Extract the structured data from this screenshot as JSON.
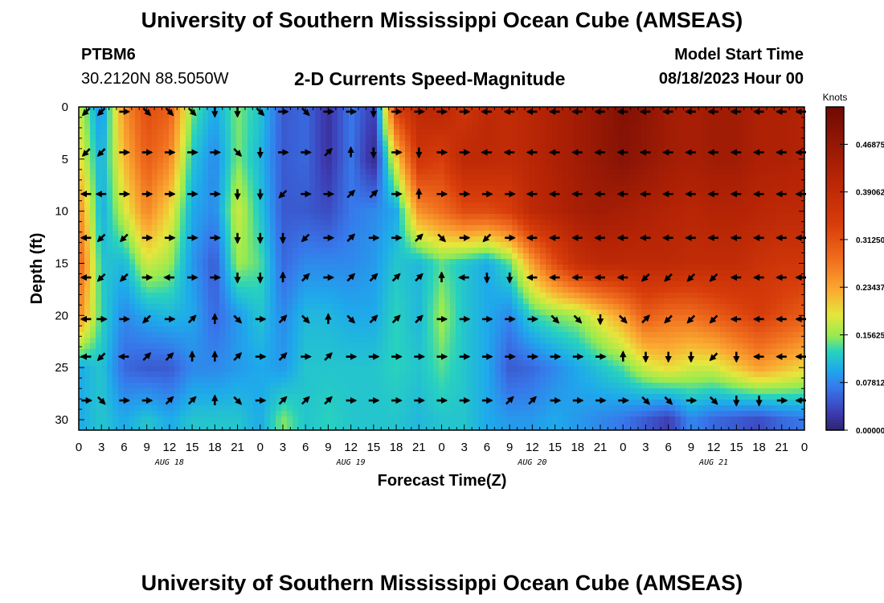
{
  "header": {
    "title": "University of Southern Mississippi Ocean Cube (AMSEAS)",
    "station_id": "PTBM6",
    "coords": "30.2120N  88.5050W",
    "subtitle": "2-D Currents Speed-Magnitude",
    "model_start_label": "Model Start Time",
    "model_start_value": "08/18/2023 Hour 00"
  },
  "footer": {
    "title": "University of Southern Mississippi Ocean Cube (AMSEAS)"
  },
  "chart_data": {
    "type": "heatmap",
    "title": "2-D Currents Speed-Magnitude",
    "xlabel": "Forecast Time(Z)",
    "ylabel": "Depth (ft)",
    "x_hours_range": [
      0,
      96
    ],
    "y_range": [
      0,
      31
    ],
    "x_ticks": [
      "0",
      "3",
      "6",
      "9",
      "12",
      "15",
      "18",
      "21",
      "0",
      "3",
      "6",
      "9",
      "12",
      "15",
      "18",
      "21",
      "0",
      "3",
      "6",
      "9",
      "12",
      "15",
      "18",
      "21",
      "0",
      "3",
      "6",
      "9",
      "12",
      "15",
      "18",
      "21",
      "0"
    ],
    "day_labels": [
      "AUG 18",
      "AUG 19",
      "AUG 20",
      "AUG 21"
    ],
    "y_ticks": [
      "0",
      "5",
      "10",
      "15",
      "20",
      "25",
      "30"
    ],
    "colorbar": {
      "unit": "Knots",
      "tick_values": [
        0.0,
        0.078125,
        0.15625,
        0.234375,
        0.3125,
        0.390625,
        0.46875
      ],
      "tick_labels": [
        "0.00000",
        "0.07812",
        "0.15625",
        "0.23437",
        "0.31250",
        "0.39062",
        "0.46875"
      ],
      "range": [
        0,
        0.53
      ]
    },
    "arrow_depths_ft": [
      0.3,
      4.2,
      8.2,
      12.4,
      16.2,
      20.2,
      23.8,
      28.0
    ],
    "speed_grid_times_h": [
      0,
      3,
      6,
      9,
      12,
      15,
      18,
      21,
      24,
      27,
      30,
      33,
      36,
      39,
      42,
      45,
      48,
      51,
      54,
      57,
      60,
      63,
      66,
      69,
      72,
      75,
      78,
      81,
      84,
      87,
      90,
      93,
      96
    ],
    "speed_grid_depths_ft": [
      0,
      5,
      10,
      15,
      20,
      25,
      30
    ],
    "speed_knots": [
      [
        0.18,
        0.08,
        0.25,
        0.32,
        0.3,
        0.15,
        0.1,
        0.15,
        0.12,
        0.05,
        0.06,
        0.02,
        0.07,
        0.03,
        0.34,
        0.4,
        0.41,
        0.36,
        0.4,
        0.39,
        0.41,
        0.43,
        0.45,
        0.47,
        0.5,
        0.48,
        0.45,
        0.44,
        0.45,
        0.45,
        0.43,
        0.43,
        0.42
      ],
      [
        0.2,
        0.1,
        0.22,
        0.3,
        0.26,
        0.12,
        0.08,
        0.15,
        0.11,
        0.05,
        0.06,
        0.02,
        0.07,
        0.01,
        0.2,
        0.36,
        0.34,
        0.4,
        0.4,
        0.39,
        0.41,
        0.43,
        0.45,
        0.47,
        0.49,
        0.47,
        0.45,
        0.44,
        0.45,
        0.45,
        0.43,
        0.43,
        0.42
      ],
      [
        0.26,
        0.1,
        0.18,
        0.26,
        0.2,
        0.1,
        0.08,
        0.18,
        0.12,
        0.05,
        0.05,
        0.04,
        0.07,
        0.08,
        0.1,
        0.25,
        0.28,
        0.32,
        0.32,
        0.34,
        0.4,
        0.42,
        0.44,
        0.45,
        0.44,
        0.43,
        0.42,
        0.41,
        0.42,
        0.42,
        0.41,
        0.4,
        0.4
      ],
      [
        0.3,
        0.12,
        0.11,
        0.18,
        0.16,
        0.09,
        0.05,
        0.16,
        0.14,
        0.06,
        0.08,
        0.08,
        0.08,
        0.09,
        0.12,
        0.11,
        0.14,
        0.12,
        0.1,
        0.14,
        0.24,
        0.32,
        0.38,
        0.4,
        0.4,
        0.4,
        0.4,
        0.39,
        0.39,
        0.39,
        0.37,
        0.36,
        0.36
      ],
      [
        0.26,
        0.13,
        0.08,
        0.1,
        0.11,
        0.1,
        0.06,
        0.09,
        0.12,
        0.08,
        0.11,
        0.11,
        0.1,
        0.1,
        0.13,
        0.11,
        0.16,
        0.12,
        0.1,
        0.08,
        0.13,
        0.15,
        0.16,
        0.2,
        0.24,
        0.3,
        0.28,
        0.28,
        0.3,
        0.32,
        0.34,
        0.32,
        0.3
      ],
      [
        0.1,
        0.12,
        0.06,
        0.05,
        0.05,
        0.08,
        0.08,
        0.09,
        0.1,
        0.09,
        0.12,
        0.12,
        0.12,
        0.12,
        0.13,
        0.12,
        0.14,
        0.12,
        0.1,
        0.05,
        0.06,
        0.08,
        0.1,
        0.12,
        0.14,
        0.18,
        0.2,
        0.18,
        0.18,
        0.21,
        0.24,
        0.22,
        0.2
      ],
      [
        0.1,
        0.12,
        0.1,
        0.12,
        0.1,
        0.12,
        0.12,
        0.12,
        0.1,
        0.15,
        0.12,
        0.13,
        0.12,
        0.12,
        0.12,
        0.11,
        0.12,
        0.12,
        0.1,
        0.09,
        0.09,
        0.1,
        0.09,
        0.08,
        0.07,
        0.05,
        0.03,
        0.08,
        0.06,
        0.05,
        0.04,
        0.06,
        0.07
      ]
    ],
    "arrows": [
      {
        "t": 1,
        "dir": [
          "sw",
          "sw",
          "w",
          "w",
          "w",
          "w",
          "w",
          "e"
        ]
      },
      {
        "t": 3,
        "dir": [
          "sw",
          "sw",
          "w",
          "sw",
          "sw",
          "e",
          "sw",
          "se"
        ]
      },
      {
        "t": 6,
        "dir": [
          "e",
          "e",
          "e",
          "sw",
          "sw",
          "e",
          "w",
          "e"
        ]
      },
      {
        "t": 9,
        "dir": [
          "se",
          "e",
          "e",
          "e",
          "e",
          "sw",
          "ne",
          "e"
        ]
      },
      {
        "t": 12,
        "dir": [
          "se",
          "e",
          "e",
          "e",
          "w",
          "e",
          "ne",
          "ne"
        ]
      },
      {
        "t": 15,
        "dir": [
          "se",
          "e",
          "e",
          "e",
          "e",
          "ne",
          "n",
          "ne"
        ]
      },
      {
        "t": 18,
        "dir": [
          "s",
          "e",
          "e",
          "e",
          "e",
          "n",
          "n",
          "n"
        ]
      },
      {
        "t": 21,
        "dir": [
          "s",
          "se",
          "s",
          "s",
          "s",
          "se",
          "ne",
          "se"
        ]
      },
      {
        "t": 24,
        "dir": [
          "se",
          "s",
          "s",
          "s",
          "s",
          "e",
          "e",
          "e"
        ]
      },
      {
        "t": 27,
        "dir": [
          "e",
          "e",
          "sw",
          "s",
          "n",
          "ne",
          "ne",
          "ne"
        ]
      },
      {
        "t": 30,
        "dir": [
          "se",
          "e",
          "e",
          "sw",
          "ne",
          "se",
          "e",
          "ne"
        ]
      },
      {
        "t": 33,
        "dir": [
          "e",
          "ne",
          "e",
          "e",
          "e",
          "n",
          "ne",
          "ne"
        ]
      },
      {
        "t": 36,
        "dir": [
          "e",
          "n",
          "ne",
          "ne",
          "ne",
          "se",
          "e",
          "e"
        ]
      },
      {
        "t": 39,
        "dir": [
          "s",
          "s",
          "ne",
          "e",
          "ne",
          "ne",
          "e",
          "e"
        ]
      },
      {
        "t": 42,
        "dir": [
          "e",
          "e",
          "e",
          "e",
          "ne",
          "ne",
          "e",
          "e"
        ]
      },
      {
        "t": 45,
        "dir": [
          "e",
          "s",
          "n",
          "ne",
          "ne",
          "ne",
          "e",
          "e"
        ]
      },
      {
        "t": 48,
        "dir": [
          "e",
          "e",
          "e",
          "se",
          "n",
          "e",
          "e",
          "e"
        ]
      },
      {
        "t": 51,
        "dir": [
          "e",
          "e",
          "e",
          "e",
          "w",
          "e",
          "e",
          "e"
        ]
      },
      {
        "t": 54,
        "dir": [
          "w",
          "w",
          "e",
          "sw",
          "s",
          "e",
          "e",
          "e"
        ]
      },
      {
        "t": 57,
        "dir": [
          "w",
          "w",
          "e",
          "e",
          "s",
          "e",
          "e",
          "ne"
        ]
      },
      {
        "t": 60,
        "dir": [
          "w",
          "w",
          "w",
          "w",
          "w",
          "e",
          "e",
          "ne"
        ]
      },
      {
        "t": 63,
        "dir": [
          "w",
          "w",
          "w",
          "w",
          "w",
          "se",
          "e",
          "e"
        ]
      },
      {
        "t": 66,
        "dir": [
          "w",
          "w",
          "w",
          "w",
          "w",
          "se",
          "e",
          "e"
        ]
      },
      {
        "t": 69,
        "dir": [
          "w",
          "w",
          "w",
          "w",
          "w",
          "s",
          "e",
          "e"
        ]
      },
      {
        "t": 72,
        "dir": [
          "w",
          "w",
          "w",
          "w",
          "w",
          "se",
          "n",
          "e"
        ]
      },
      {
        "t": 75,
        "dir": [
          "w",
          "w",
          "w",
          "w",
          "sw",
          "ne",
          "s",
          "se"
        ]
      },
      {
        "t": 78,
        "dir": [
          "w",
          "w",
          "w",
          "w",
          "sw",
          "sw",
          "s",
          "se"
        ]
      },
      {
        "t": 81,
        "dir": [
          "w",
          "w",
          "w",
          "w",
          "sw",
          "sw",
          "s",
          "e"
        ]
      },
      {
        "t": 84,
        "dir": [
          "w",
          "w",
          "w",
          "w",
          "sw",
          "sw",
          "sw",
          "se"
        ]
      },
      {
        "t": 87,
        "dir": [
          "w",
          "w",
          "w",
          "w",
          "w",
          "w",
          "s",
          "s"
        ]
      },
      {
        "t": 90,
        "dir": [
          "w",
          "w",
          "w",
          "w",
          "w",
          "w",
          "w",
          "s"
        ]
      },
      {
        "t": 93,
        "dir": [
          "w",
          "w",
          "w",
          "w",
          "w",
          "w",
          "w",
          "e"
        ]
      },
      {
        "t": 96,
        "dir": [
          "w",
          "w",
          "w",
          "w",
          "w",
          "w",
          "w",
          "w"
        ]
      }
    ]
  }
}
